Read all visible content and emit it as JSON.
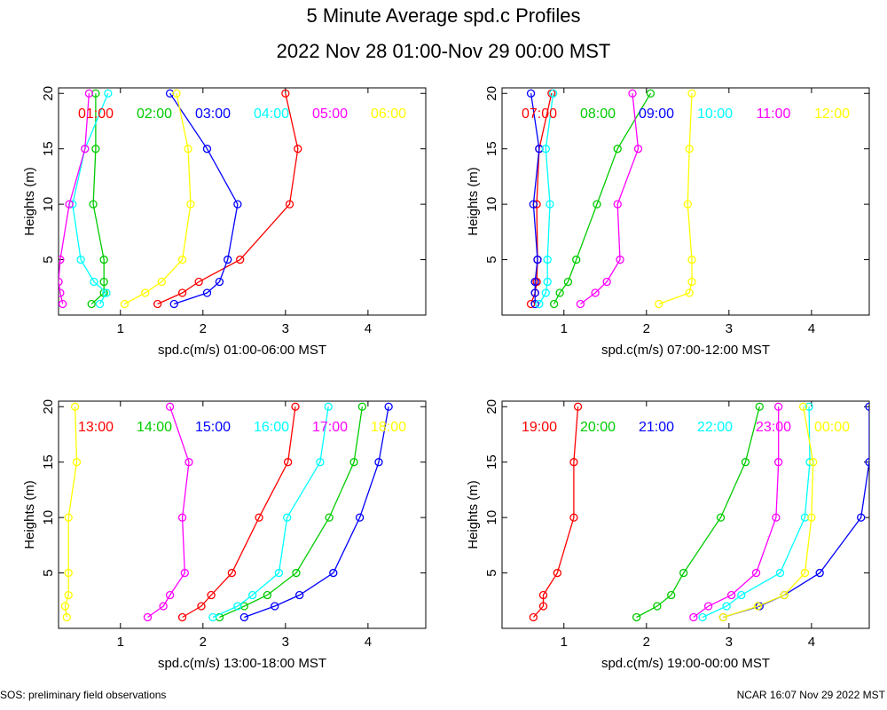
{
  "header": {
    "title": "5 Minute Average spd.c Profiles",
    "subtitle": "2022 Nov 28 01:00-Nov 29 00:00 MST"
  },
  "footer": {
    "left": "SOS: preliminary field observations",
    "right": "NCAR 16:07 Nov 29 2022 MST"
  },
  "chart_data": [
    {
      "type": "line",
      "xlabel": "spd.c(m/s) 01:00-06:00 MST",
      "ylabel": "Heights (m)",
      "xlim": [
        0.25,
        4.7
      ],
      "ylim": [
        0,
        20.5
      ],
      "xticks": [
        1,
        2,
        3,
        4
      ],
      "yticks": [
        5,
        10,
        15,
        20
      ],
      "heights": [
        1,
        2,
        3,
        5,
        10,
        15,
        20
      ],
      "series": [
        {
          "name": "01:00",
          "color": "#ff0000",
          "values": [
            1.45,
            1.75,
            1.95,
            2.45,
            3.05,
            3.15,
            3.0
          ]
        },
        {
          "name": "02:00",
          "color": "#00cc00",
          "values": [
            0.65,
            0.8,
            0.8,
            0.8,
            0.67,
            0.7,
            0.7
          ]
        },
        {
          "name": "03:00",
          "color": "#0000ff",
          "values": [
            1.65,
            2.05,
            2.2,
            2.3,
            2.42,
            2.05,
            1.6
          ]
        },
        {
          "name": "04:00",
          "color": "#00ffff",
          "values": [
            0.75,
            0.83,
            0.68,
            0.52,
            0.42,
            0.57,
            0.85
          ]
        },
        {
          "name": "05:00",
          "color": "#ff00ff",
          "values": [
            0.3,
            0.27,
            0.25,
            0.27,
            0.38,
            0.57,
            0.62
          ]
        },
        {
          "name": "06:00",
          "color": "#ffff00",
          "values": [
            1.05,
            1.3,
            1.5,
            1.75,
            1.85,
            1.82,
            1.68
          ]
        }
      ]
    },
    {
      "type": "line",
      "xlabel": "spd.c(m/s) 07:00-12:00 MST",
      "ylabel": "Heights (m)",
      "xlim": [
        0.25,
        4.7
      ],
      "ylim": [
        0,
        20.5
      ],
      "xticks": [
        1,
        2,
        3,
        4
      ],
      "yticks": [
        5,
        10,
        15,
        20
      ],
      "heights": [
        1,
        2,
        3,
        5,
        10,
        15,
        20
      ],
      "series": [
        {
          "name": "07:00",
          "color": "#ff0000",
          "values": [
            0.6,
            0.65,
            0.67,
            0.68,
            0.67,
            0.7,
            0.85
          ]
        },
        {
          "name": "08:00",
          "color": "#00cc00",
          "values": [
            0.88,
            0.95,
            1.05,
            1.15,
            1.4,
            1.65,
            2.05
          ]
        },
        {
          "name": "09:00",
          "color": "#0000ff",
          "values": [
            0.65,
            0.65,
            0.65,
            0.68,
            0.63,
            0.7,
            0.6
          ]
        },
        {
          "name": "10:00",
          "color": "#00ffff",
          "values": [
            0.7,
            0.78,
            0.8,
            0.8,
            0.83,
            0.78,
            0.87
          ]
        },
        {
          "name": "11:00",
          "color": "#ff00ff",
          "values": [
            1.2,
            1.38,
            1.52,
            1.68,
            1.65,
            1.9,
            1.83
          ]
        },
        {
          "name": "12:00",
          "color": "#ffff00",
          "values": [
            2.15,
            2.52,
            2.55,
            2.55,
            2.5,
            2.52,
            2.55
          ]
        }
      ]
    },
    {
      "type": "line",
      "xlabel": "spd.c(m/s) 13:00-18:00 MST",
      "ylabel": "Heights (m)",
      "xlim": [
        0.25,
        4.7
      ],
      "ylim": [
        0,
        20.5
      ],
      "xticks": [
        1,
        2,
        3,
        4
      ],
      "yticks": [
        5,
        10,
        15,
        20
      ],
      "heights": [
        1,
        2,
        3,
        5,
        10,
        15,
        20
      ],
      "series": [
        {
          "name": "13:00",
          "color": "#ff0000",
          "values": [
            1.75,
            1.98,
            2.1,
            2.35,
            2.68,
            3.03,
            3.12
          ]
        },
        {
          "name": "14:00",
          "color": "#00cc00",
          "values": [
            2.2,
            2.5,
            2.78,
            3.13,
            3.53,
            3.83,
            3.93
          ]
        },
        {
          "name": "15:00",
          "color": "#0000ff",
          "values": [
            2.5,
            2.87,
            3.17,
            3.58,
            3.9,
            4.13,
            4.25
          ]
        },
        {
          "name": "16:00",
          "color": "#00ffff",
          "values": [
            2.12,
            2.42,
            2.6,
            2.92,
            3.02,
            3.42,
            3.52
          ]
        },
        {
          "name": "17:00",
          "color": "#ff00ff",
          "values": [
            1.33,
            1.52,
            1.6,
            1.78,
            1.75,
            1.83,
            1.6
          ]
        },
        {
          "name": "18:00",
          "color": "#ffff00",
          "values": [
            0.35,
            0.33,
            0.37,
            0.37,
            0.37,
            0.47,
            0.45
          ]
        }
      ]
    },
    {
      "type": "line",
      "xlabel": "spd.c(m/s) 19:00-00:00 MST",
      "ylabel": "Heights (m)",
      "xlim": [
        0.25,
        4.7
      ],
      "ylim": [
        0,
        20.5
      ],
      "xticks": [
        1,
        2,
        3,
        4
      ],
      "yticks": [
        5,
        10,
        15,
        20
      ],
      "heights": [
        1,
        2,
        3,
        5,
        10,
        15,
        20
      ],
      "series": [
        {
          "name": "19:00",
          "color": "#ff0000",
          "values": [
            0.63,
            0.75,
            0.75,
            0.92,
            1.12,
            1.12,
            1.17
          ]
        },
        {
          "name": "20:00",
          "color": "#00cc00",
          "values": [
            1.88,
            2.13,
            2.3,
            2.45,
            2.9,
            3.2,
            3.37
          ]
        },
        {
          "name": "21:00",
          "color": "#0000ff",
          "values": [
            2.93,
            3.37,
            3.67,
            4.1,
            4.6,
            4.7,
            4.7
          ]
        },
        {
          "name": "22:00",
          "color": "#00ffff",
          "values": [
            2.68,
            2.97,
            3.15,
            3.62,
            3.92,
            3.98,
            3.97
          ]
        },
        {
          "name": "23:00",
          "color": "#ff00ff",
          "values": [
            2.57,
            2.75,
            3.03,
            3.33,
            3.57,
            3.6,
            3.6
          ]
        },
        {
          "name": "00:00",
          "color": "#ffff00",
          "values": [
            2.93,
            3.35,
            3.67,
            3.92,
            4.0,
            4.02,
            3.9
          ]
        }
      ]
    }
  ]
}
